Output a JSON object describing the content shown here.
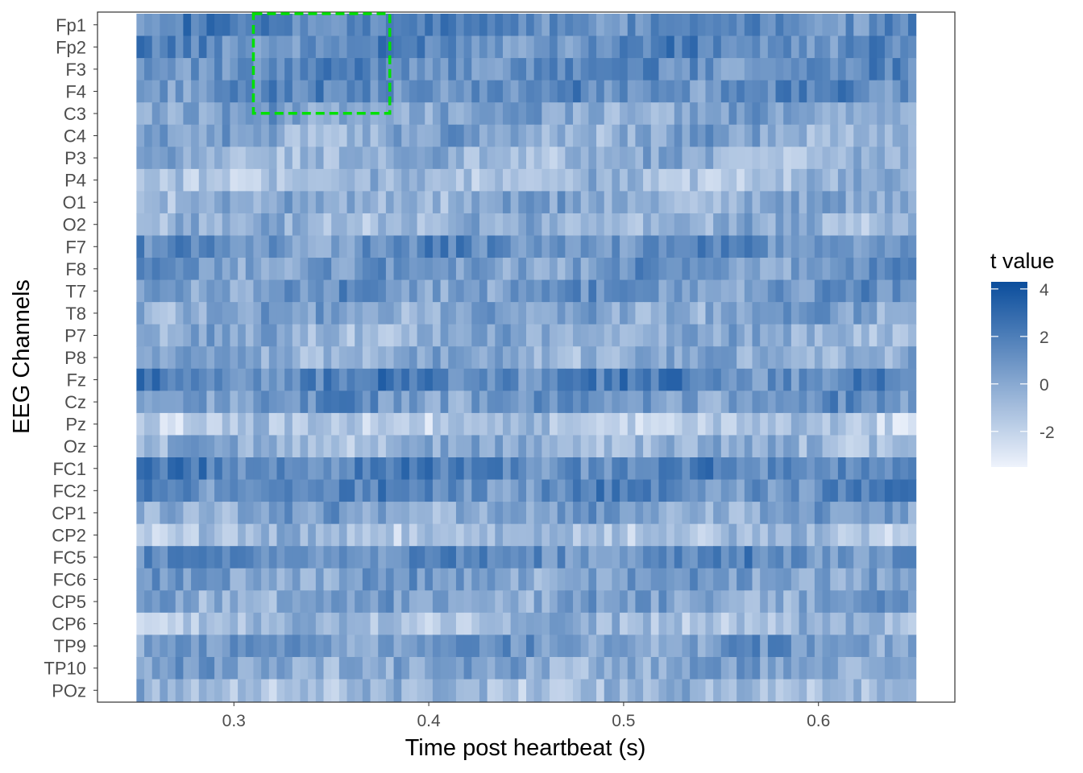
{
  "chart_data": {
    "type": "heatmap",
    "xlabel": "Time post heartbeat (s)",
    "ylabel": "EEG Channels",
    "x_ticks": [
      0.3,
      0.4,
      0.5,
      0.6
    ],
    "x_ticks_text": [
      "0.3",
      "0.4",
      "0.5",
      "0.6"
    ],
    "xlim": [
      0.23,
      0.67
    ],
    "x_range": [
      0.25,
      0.65
    ],
    "x_step": 0.004,
    "channels": [
      "Fp1",
      "Fp2",
      "F3",
      "F4",
      "C3",
      "C4",
      "P3",
      "P4",
      "O1",
      "O2",
      "F7",
      "F8",
      "T7",
      "T8",
      "P7",
      "P8",
      "Fz",
      "Cz",
      "Pz",
      "Oz",
      "FC1",
      "FC2",
      "CP1",
      "CP2",
      "FC5",
      "FC6",
      "CP5",
      "CP6",
      "TP9",
      "TP10",
      "POz"
    ],
    "row_mean_t": [
      1.6,
      1.4,
      1.3,
      1.2,
      0.2,
      0.0,
      -0.5,
      -0.9,
      -0.2,
      -0.5,
      1.1,
      0.6,
      0.7,
      0.1,
      -0.3,
      -0.2,
      1.7,
      0.8,
      -1.6,
      -0.5,
      1.7,
      1.4,
      0.2,
      -1.1,
      1.3,
      0.4,
      0.1,
      -0.9,
      0.6,
      0.1,
      -0.8
    ],
    "highlight_region": {
      "x_range": [
        0.31,
        0.38
      ],
      "channels": [
        "Fp1",
        "Fp2",
        "F3",
        "F4",
        "C3"
      ],
      "color": "#00e000"
    },
    "legend": {
      "title": "t value",
      "position": "right",
      "ticks": [
        4,
        2,
        0,
        -2
      ],
      "ticks_text": [
        "4",
        "2",
        "0",
        "-2"
      ],
      "range": [
        -3.5,
        4.3
      ]
    },
    "colors": {
      "low": "#eef3fc",
      "high": "#0a4d9c"
    },
    "grid": false
  }
}
